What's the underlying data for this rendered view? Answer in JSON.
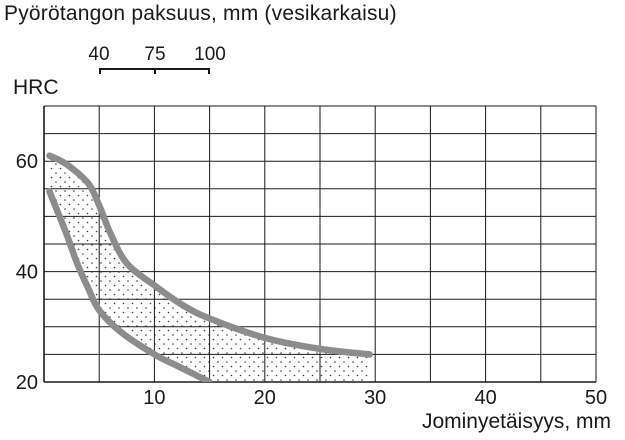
{
  "header": {
    "title": "Pyörötangon paksuus, mm (vesikarkaisu)",
    "secondary_axis_ticks": [
      "40",
      "75",
      "100"
    ]
  },
  "chart_data": {
    "type": "area",
    "title": "Pyörötangon paksuus, mm (vesikarkaisu)",
    "xlabel": "Jominyetäisyys, mm",
    "ylabel": "HRC",
    "xlim": [
      0,
      50
    ],
    "ylim": [
      20,
      70
    ],
    "x_ticks": [
      10,
      20,
      30,
      40,
      50
    ],
    "y_ticks": [
      20,
      40,
      60
    ],
    "grid": true,
    "grid_step": {
      "x": 5,
      "y": 5
    },
    "secondary_x_axis": {
      "label": "Pyörötangon paksuus, mm (vesikarkaisu)",
      "ticks": [
        {
          "label": "40",
          "jominy_mm": 5
        },
        {
          "label": "75",
          "jominy_mm": 10
        },
        {
          "label": "100",
          "jominy_mm": 15
        }
      ]
    },
    "series": [
      {
        "role": "upper-bound",
        "points": [
          [
            0.5,
            61
          ],
          [
            2,
            59.5
          ],
          [
            4,
            56
          ],
          [
            5,
            52
          ],
          [
            6,
            47
          ],
          [
            7.5,
            41.5
          ],
          [
            10,
            37.5
          ],
          [
            12.5,
            34
          ],
          [
            15,
            31.5
          ],
          [
            20,
            28
          ],
          [
            25,
            26
          ],
          [
            29.5,
            25
          ]
        ]
      },
      {
        "role": "lower-bound",
        "points": [
          [
            0.5,
            54.5
          ],
          [
            2,
            47
          ],
          [
            3,
            41.5
          ],
          [
            4,
            37
          ],
          [
            5,
            33
          ],
          [
            7,
            29
          ],
          [
            10,
            25
          ],
          [
            12,
            23
          ],
          [
            14,
            21
          ],
          [
            15,
            20
          ]
        ]
      }
    ],
    "colors": {
      "band_curve": "#8c8c8c",
      "grid": "#1a1a1a",
      "stipple": "#3a3a3a"
    }
  }
}
